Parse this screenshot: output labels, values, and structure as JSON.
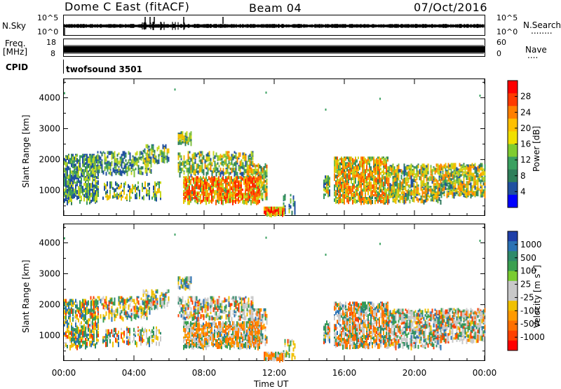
{
  "header": {
    "station": "Dome C East (fitACF)",
    "beam": "Beam 04",
    "date": "07/Oct/2016"
  },
  "top_strip": {
    "left_label_1": "N.Sky",
    "left_label_2": "Freq.",
    "left_label_3": "[MHz]",
    "cpid_label": "CPID",
    "right_label_1": "N.Search",
    "right_label_2": "Nave",
    "dots": "........",
    "dots2": "....",
    "sky_ticks": [
      "10^5",
      "10^0"
    ],
    "search_ticks": [
      "10^5",
      "10^0"
    ],
    "freq_ticks": [
      "18",
      "8"
    ],
    "nave_ticks": [
      "60",
      "0"
    ],
    "cpid_value": "twofsound 3501"
  },
  "chart_data": [
    {
      "type": "heatmap",
      "name": "power-panel",
      "ylabel": "Slant Range [km]",
      "xlabel": "",
      "ylim": [
        200,
        4600
      ],
      "y_ticks": [
        1000,
        2000,
        3000,
        4000
      ],
      "x_ticks": [
        0,
        4,
        8,
        12,
        16,
        20,
        24
      ],
      "colorbar": {
        "label": "Power [dB]",
        "ticks": [
          "28",
          "24",
          "20",
          "16",
          "12",
          "8",
          "4"
        ],
        "colors": [
          "#ff0000",
          "#ff3a00",
          "#ff7f00",
          "#ffc000",
          "#f0e000",
          "#7fcc30",
          "#3aa060",
          "#2e7e5a",
          "#2050a0",
          "#0000ff"
        ]
      }
    },
    {
      "type": "heatmap",
      "name": "velocity-panel",
      "ylabel": "Slant Range [km]",
      "xlabel": "Time UT",
      "ylim": [
        200,
        4600
      ],
      "y_ticks": [
        1000,
        2000,
        3000,
        4000
      ],
      "x_ticks": [
        0,
        4,
        8,
        12,
        16,
        20,
        24
      ],
      "x_tick_labels": [
        "00:00",
        "04:00",
        "08:00",
        "12:00",
        "16:00",
        "20:00",
        "00:00"
      ],
      "colorbar": {
        "label": "Velocity [m s",
        "label_sup": "-1",
        "label_end": "]",
        "ticks": [
          "1000",
          "500",
          "100",
          "25",
          "-25",
          "-100",
          "-500",
          "-1000"
        ],
        "colors": [
          "#1f3fa8",
          "#2b72b4",
          "#2e8a6a",
          "#3aa050",
          "#7acc30",
          "#c8c8c8",
          "#c8c8c8",
          "#f0c000",
          "#ff9a00",
          "#ff7000",
          "#ff4000",
          "#ff0000"
        ]
      }
    }
  ],
  "colors": {
    "sky_fill": "#000000",
    "gray_scatter": "#c8c8c8"
  }
}
